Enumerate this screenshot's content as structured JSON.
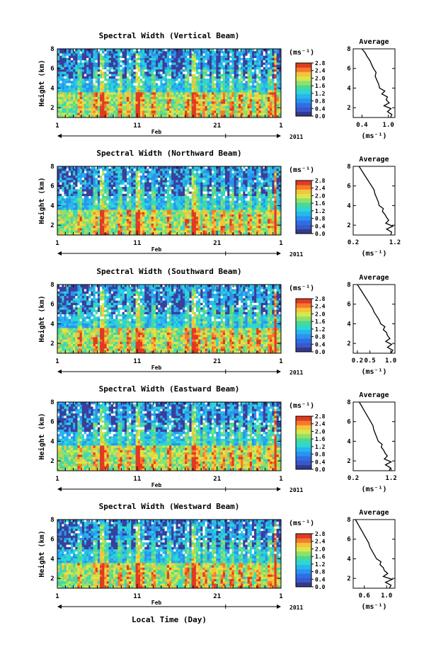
{
  "figure": {
    "xlabel": "Local Time (Day)",
    "month_label": "Feb",
    "year_label": "2011",
    "x_tick_labels": [
      "1",
      "11",
      "21",
      "1"
    ],
    "ylabel": "Height (km)",
    "y_tick_labels": [
      "2",
      "4",
      "6",
      "8"
    ],
    "unit_label": "(ms⁻¹)",
    "average_title": "Average",
    "colorscale_hex": [
      "#333a8c",
      "#3a58c8",
      "#2f6ee6",
      "#2a93ee",
      "#27b6f0",
      "#2fd6d2",
      "#48d99a",
      "#8fe06a",
      "#d6e84c",
      "#f6c33a",
      "#f47a2c",
      "#e23a22"
    ]
  },
  "chart_data": [
    {
      "type": "heatmap",
      "title": "Spectral Width (Vertical Beam)",
      "colorbar_ticks": [
        "0.0",
        "0.4",
        "0.8",
        "1.2",
        "1.6",
        "2.0",
        "2.4",
        "2.8"
      ],
      "ylim": [
        1,
        8
      ],
      "average_profile": {
        "type": "line",
        "xtick_labels": [
          "0.4",
          "1.0"
        ],
        "xlim": [
          0.2,
          1.15
        ],
        "height_km": [
          1.0,
          1.3,
          1.6,
          1.9,
          2.2,
          2.5,
          2.8,
          3.1,
          3.4,
          3.7,
          4.0,
          4.4,
          4.8,
          5.2,
          5.6,
          6.0,
          6.4,
          6.8,
          7.2,
          7.6,
          8.0
        ],
        "width": [
          1.05,
          1.08,
          0.98,
          1.06,
          0.9,
          1.02,
          0.95,
          0.98,
          0.85,
          0.92,
          0.8,
          0.78,
          0.74,
          0.7,
          0.72,
          0.66,
          0.62,
          0.58,
          0.52,
          0.47,
          0.4
        ]
      }
    },
    {
      "type": "heatmap",
      "title": "Spectral Width (Northward Beam)",
      "colorbar_ticks": [
        "0.0",
        "0.4",
        "0.8",
        "1.2",
        "1.6",
        "2.0",
        "2.4",
        "2.8"
      ],
      "ylim": [
        1,
        8
      ],
      "average_profile": {
        "type": "line",
        "xtick_labels": [
          "0.2",
          "1.2"
        ],
        "xlim": [
          0.2,
          1.2
        ],
        "height_km": [
          1.0,
          1.3,
          1.6,
          1.9,
          2.2,
          2.5,
          2.8,
          3.1,
          3.4,
          3.7,
          4.0,
          4.4,
          4.8,
          5.2,
          5.6,
          6.0,
          6.4,
          6.8,
          7.2,
          7.6,
          8.0
        ],
        "width": [
          1.1,
          1.12,
          1.0,
          1.15,
          0.98,
          1.05,
          1.0,
          0.96,
          0.9,
          0.92,
          0.82,
          0.8,
          0.76,
          0.72,
          0.7,
          0.64,
          0.58,
          0.52,
          0.46,
          0.4,
          0.34
        ]
      }
    },
    {
      "type": "heatmap",
      "title": "Spectral Width (Southward Beam)",
      "colorbar_ticks": [
        "0.0",
        "0.4",
        "0.8",
        "1.2",
        "1.6",
        "2.0",
        "2.4",
        "2.8"
      ],
      "ylim": [
        1,
        8
      ],
      "average_profile": {
        "type": "line",
        "xtick_labels": [
          "0.2",
          "0.5",
          "1.0"
        ],
        "xlim": [
          0.1,
          1.1
        ],
        "height_km": [
          1.0,
          1.3,
          1.6,
          1.9,
          2.2,
          2.5,
          2.8,
          3.1,
          3.4,
          3.7,
          4.0,
          4.4,
          4.8,
          5.2,
          5.6,
          6.0,
          6.4,
          6.8,
          7.2,
          7.6,
          8.0
        ],
        "width": [
          1.0,
          1.05,
          0.92,
          1.02,
          0.88,
          0.98,
          0.92,
          0.9,
          0.82,
          0.86,
          0.76,
          0.72,
          0.66,
          0.6,
          0.56,
          0.5,
          0.44,
          0.38,
          0.32,
          0.26,
          0.2
        ]
      }
    },
    {
      "type": "heatmap",
      "title": "Spectral Width (Eastward Beam)",
      "colorbar_ticks": [
        "0.0",
        "0.4",
        "0.8",
        "1.2",
        "1.6",
        "2.0",
        "2.4",
        "2.8"
      ],
      "ylim": [
        1,
        8
      ],
      "average_profile": {
        "type": "line",
        "xtick_labels": [
          "0.2",
          "1.2"
        ],
        "xlim": [
          0.2,
          1.3
        ],
        "height_km": [
          1.0,
          1.3,
          1.6,
          1.9,
          2.2,
          2.5,
          2.8,
          3.1,
          3.4,
          3.7,
          4.0,
          4.4,
          4.8,
          5.2,
          5.6,
          6.0,
          6.4,
          6.8,
          7.2,
          7.6,
          8.0
        ],
        "width": [
          1.15,
          1.18,
          1.05,
          1.2,
          1.02,
          1.1,
          1.04,
          1.0,
          0.94,
          0.96,
          0.86,
          0.82,
          0.78,
          0.74,
          0.72,
          0.66,
          0.6,
          0.54,
          0.48,
          0.42,
          0.36
        ]
      }
    },
    {
      "type": "heatmap",
      "title": "Spectral Width (Westward Beam)",
      "colorbar_ticks": [
        "0.0",
        "0.4",
        "0.8",
        "1.2",
        "1.6",
        "2.0",
        "2.4",
        "2.8"
      ],
      "ylim": [
        1,
        8
      ],
      "average_profile": {
        "type": "line",
        "xtick_labels": [
          "0.6",
          "1.0"
        ],
        "xlim": [
          0.4,
          1.15
        ],
        "height_km": [
          1.0,
          1.3,
          1.6,
          1.9,
          2.2,
          2.5,
          2.8,
          3.1,
          3.4,
          3.7,
          4.0,
          4.4,
          4.8,
          5.2,
          5.6,
          6.0,
          6.4,
          6.8,
          7.2,
          7.6,
          8.0
        ],
        "width": [
          1.05,
          1.08,
          0.98,
          1.1,
          0.94,
          1.02,
          0.96,
          0.94,
          0.88,
          0.9,
          0.82,
          0.78,
          0.74,
          0.7,
          0.68,
          0.64,
          0.6,
          0.56,
          0.52,
          0.48,
          0.44
        ]
      }
    }
  ]
}
